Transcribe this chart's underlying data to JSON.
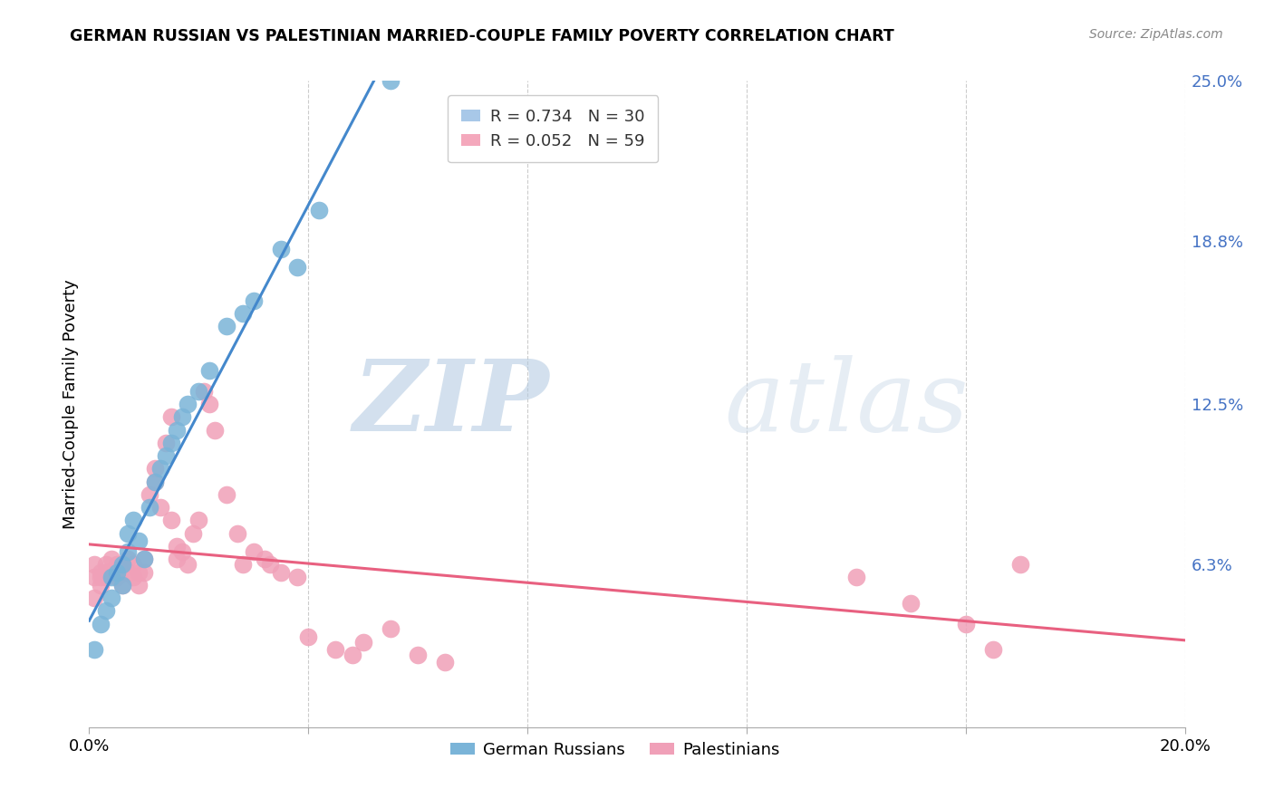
{
  "title": "GERMAN RUSSIAN VS PALESTINIAN MARRIED-COUPLE FAMILY POVERTY CORRELATION CHART",
  "source": "Source: ZipAtlas.com",
  "ylabel": "Married-Couple Family Poverty",
  "x_min": 0.0,
  "x_max": 0.2,
  "y_min": 0.0,
  "y_max": 0.25,
  "x_ticks": [
    0.0,
    0.04,
    0.08,
    0.12,
    0.16,
    0.2
  ],
  "y_tick_labels_right": [
    "25.0%",
    "18.8%",
    "12.5%",
    "6.3%"
  ],
  "y_tick_vals_right": [
    0.25,
    0.188,
    0.125,
    0.063
  ],
  "watermark_zip": "ZIP",
  "watermark_atlas": "atlas",
  "legend_label1": "R = 0.734   N = 30",
  "legend_label2": "R = 0.052   N = 59",
  "legend_color1": "#a8c8e8",
  "legend_color2": "#f4a8bc",
  "blue_color": "#7ab4d8",
  "pink_color": "#f0a0b8",
  "blue_line_color": "#4488cc",
  "pink_line_color": "#e86080",
  "background_color": "#ffffff",
  "grid_color": "#cccccc",
  "blue_x": [
    0.001,
    0.002,
    0.003,
    0.004,
    0.004,
    0.005,
    0.006,
    0.006,
    0.007,
    0.007,
    0.008,
    0.009,
    0.01,
    0.011,
    0.012,
    0.013,
    0.014,
    0.015,
    0.016,
    0.017,
    0.018,
    0.02,
    0.022,
    0.025,
    0.028,
    0.03,
    0.035,
    0.038,
    0.042,
    0.055
  ],
  "blue_y": [
    0.03,
    0.04,
    0.045,
    0.05,
    0.058,
    0.06,
    0.063,
    0.055,
    0.068,
    0.075,
    0.08,
    0.072,
    0.065,
    0.085,
    0.095,
    0.1,
    0.105,
    0.11,
    0.115,
    0.12,
    0.125,
    0.13,
    0.138,
    0.155,
    0.16,
    0.165,
    0.185,
    0.178,
    0.2,
    0.25
  ],
  "pink_x": [
    0.001,
    0.001,
    0.001,
    0.002,
    0.002,
    0.002,
    0.003,
    0.003,
    0.003,
    0.004,
    0.004,
    0.005,
    0.005,
    0.006,
    0.006,
    0.007,
    0.007,
    0.008,
    0.008,
    0.009,
    0.009,
    0.01,
    0.01,
    0.011,
    0.012,
    0.012,
    0.013,
    0.014,
    0.015,
    0.015,
    0.016,
    0.016,
    0.017,
    0.018,
    0.019,
    0.02,
    0.021,
    0.022,
    0.023,
    0.025,
    0.027,
    0.028,
    0.03,
    0.032,
    0.033,
    0.035,
    0.038,
    0.04,
    0.045,
    0.048,
    0.05,
    0.055,
    0.06,
    0.065,
    0.14,
    0.15,
    0.16,
    0.165,
    0.17
  ],
  "pink_y": [
    0.058,
    0.063,
    0.05,
    0.06,
    0.058,
    0.055,
    0.063,
    0.06,
    0.058,
    0.065,
    0.06,
    0.063,
    0.058,
    0.055,
    0.063,
    0.06,
    0.065,
    0.058,
    0.063,
    0.06,
    0.055,
    0.065,
    0.06,
    0.09,
    0.095,
    0.1,
    0.085,
    0.11,
    0.12,
    0.08,
    0.07,
    0.065,
    0.068,
    0.063,
    0.075,
    0.08,
    0.13,
    0.125,
    0.115,
    0.09,
    0.075,
    0.063,
    0.068,
    0.065,
    0.063,
    0.06,
    0.058,
    0.035,
    0.03,
    0.028,
    0.033,
    0.038,
    0.028,
    0.025,
    0.058,
    0.048,
    0.04,
    0.03,
    0.063
  ]
}
